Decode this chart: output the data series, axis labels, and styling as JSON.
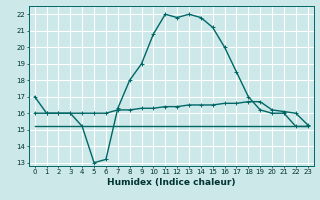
{
  "xlabel": "Humidex (Indice chaleur)",
  "ylabel": "",
  "bg_color": "#cce8e8",
  "grid_color": "#ffffff",
  "line_color": "#006666",
  "xlim": [
    -0.5,
    23.5
  ],
  "ylim": [
    12.8,
    22.5
  ],
  "xticks": [
    0,
    1,
    2,
    3,
    4,
    5,
    6,
    7,
    8,
    9,
    10,
    11,
    12,
    13,
    14,
    15,
    16,
    17,
    18,
    19,
    20,
    21,
    22,
    23
  ],
  "yticks": [
    13,
    14,
    15,
    16,
    17,
    18,
    19,
    20,
    21,
    22
  ],
  "curve1_x": [
    0,
    1,
    2,
    3,
    4,
    5,
    6,
    7,
    8,
    9,
    10,
    11,
    12,
    13,
    14,
    15,
    16,
    17,
    18,
    19,
    20,
    21,
    22,
    23
  ],
  "curve1_y": [
    17.0,
    16.0,
    16.0,
    16.0,
    15.2,
    13.0,
    13.2,
    16.3,
    18.0,
    19.0,
    20.8,
    22.0,
    21.8,
    22.0,
    21.8,
    21.2,
    20.0,
    18.5,
    17.0,
    16.2,
    16.0,
    16.0,
    15.2,
    15.2
  ],
  "curve2_x": [
    0,
    1,
    2,
    3,
    4,
    5,
    6,
    7,
    8,
    9,
    10,
    11,
    12,
    13,
    14,
    15,
    16,
    17,
    18,
    19,
    20,
    21,
    22,
    23
  ],
  "curve2_y": [
    15.2,
    15.2,
    15.2,
    15.2,
    15.2,
    15.2,
    15.2,
    15.2,
    15.2,
    15.2,
    15.2,
    15.2,
    15.2,
    15.2,
    15.2,
    15.2,
    15.2,
    15.2,
    15.2,
    15.2,
    15.2,
    15.2,
    15.2,
    15.2
  ],
  "curve3_x": [
    0,
    1,
    2,
    3,
    4,
    5,
    6,
    7,
    8,
    9,
    10,
    11,
    12,
    13,
    14,
    15,
    16,
    17,
    18,
    19,
    20,
    21,
    22,
    23
  ],
  "curve3_y": [
    16.0,
    16.0,
    16.0,
    16.0,
    16.0,
    16.0,
    16.0,
    16.2,
    16.2,
    16.3,
    16.3,
    16.4,
    16.4,
    16.5,
    16.5,
    16.5,
    16.6,
    16.6,
    16.7,
    16.7,
    16.2,
    16.1,
    16.0,
    15.3
  ]
}
